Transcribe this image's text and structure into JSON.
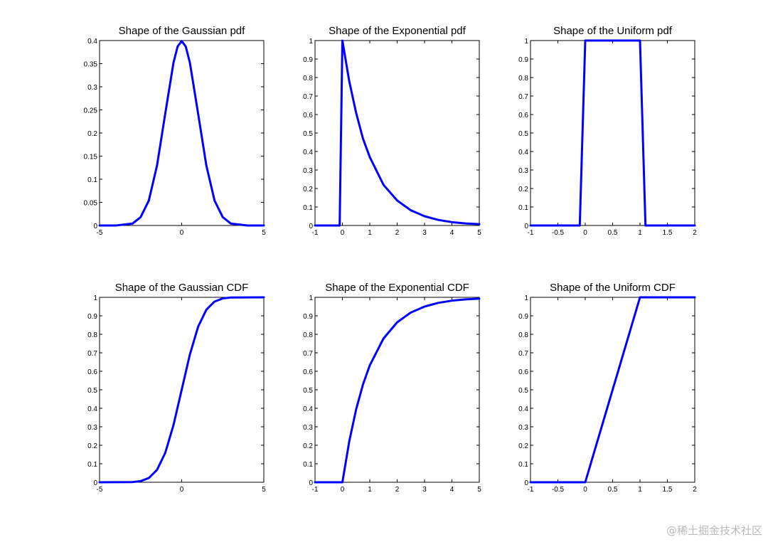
{
  "figure": {
    "line_color": "#0000ff",
    "axis_color": "#000000"
  },
  "watermark": "@稀土掘金技术社区",
  "chart_data": [
    {
      "type": "line",
      "title": "Shape of the Gaussian pdf",
      "xlim": [
        -5,
        5
      ],
      "ylim": [
        0,
        0.4
      ],
      "xticks": [
        -5,
        0,
        5
      ],
      "xtick_labels": [
        "-5",
        "0",
        "5"
      ],
      "yticks": [
        0,
        0.05,
        0.1,
        0.15,
        0.2,
        0.25,
        0.3,
        0.35,
        0.4
      ],
      "ytick_labels": [
        "0",
        "0.05",
        "0.1",
        "0.15",
        "0.2",
        "0.25",
        "0.3",
        "0.35",
        "0.4"
      ],
      "series": [
        {
          "name": "Gaussian pdf",
          "x": [
            -5,
            -4,
            -3,
            -2.5,
            -2,
            -1.5,
            -1,
            -0.5,
            -0.25,
            0,
            0.25,
            0.5,
            1,
            1.5,
            2,
            2.5,
            3,
            4,
            5
          ],
          "y": [
            0,
            0,
            0.004,
            0.018,
            0.054,
            0.13,
            0.242,
            0.352,
            0.387,
            0.399,
            0.387,
            0.352,
            0.242,
            0.13,
            0.054,
            0.018,
            0.004,
            0,
            0
          ]
        }
      ]
    },
    {
      "type": "line",
      "title": "Shape of the Exponential pdf",
      "xlim": [
        -1,
        5
      ],
      "ylim": [
        0,
        1
      ],
      "xticks": [
        -1,
        0,
        1,
        2,
        3,
        4,
        5
      ],
      "xtick_labels": [
        "-1",
        "0",
        "1",
        "2",
        "3",
        "4",
        "5"
      ],
      "yticks": [
        0,
        0.1,
        0.2,
        0.3,
        0.4,
        0.5,
        0.6,
        0.7,
        0.8,
        0.9,
        1
      ],
      "ytick_labels": [
        "0",
        "0.1",
        "0.2",
        "0.3",
        "0.4",
        "0.5",
        "0.6",
        "0.7",
        "0.8",
        "0.9",
        "1"
      ],
      "series": [
        {
          "name": "Exponential pdf",
          "x": [
            -1,
            -0.1,
            0,
            0.25,
            0.5,
            0.75,
            1,
            1.5,
            2,
            2.5,
            3,
            3.5,
            4,
            4.5,
            5
          ],
          "y": [
            0,
            0,
            1,
            0.78,
            0.61,
            0.47,
            0.37,
            0.22,
            0.135,
            0.082,
            0.05,
            0.03,
            0.018,
            0.011,
            0.007
          ]
        }
      ]
    },
    {
      "type": "line",
      "title": "Shape of the Uniform pdf",
      "xlim": [
        -1,
        2
      ],
      "ylim": [
        0,
        1
      ],
      "xticks": [
        -1,
        -0.5,
        0,
        0.5,
        1,
        1.5,
        2
      ],
      "xtick_labels": [
        "-1",
        "-0.5",
        "0",
        "0.5",
        "1",
        "1.5",
        "2"
      ],
      "yticks": [
        0,
        0.1,
        0.2,
        0.3,
        0.4,
        0.5,
        0.6,
        0.7,
        0.8,
        0.9,
        1
      ],
      "ytick_labels": [
        "0",
        "0.1",
        "0.2",
        "0.3",
        "0.4",
        "0.5",
        "0.6",
        "0.7",
        "0.8",
        "0.9",
        "1"
      ],
      "series": [
        {
          "name": "Uniform pdf",
          "x": [
            -1,
            -0.1,
            0,
            1,
            1.1,
            2
          ],
          "y": [
            0,
            0,
            1,
            1,
            0,
            0
          ]
        }
      ]
    },
    {
      "type": "line",
      "title": "Shape of the Gaussian CDF",
      "xlim": [
        -5,
        5
      ],
      "ylim": [
        0,
        1
      ],
      "xticks": [
        -5,
        0,
        5
      ],
      "xtick_labels": [
        "-5",
        "0",
        "5"
      ],
      "yticks": [
        0,
        0.1,
        0.2,
        0.3,
        0.4,
        0.5,
        0.6,
        0.7,
        0.8,
        0.9,
        1
      ],
      "ytick_labels": [
        "0",
        "0.1",
        "0.2",
        "0.3",
        "0.4",
        "0.5",
        "0.6",
        "0.7",
        "0.8",
        "0.9",
        "1"
      ],
      "series": [
        {
          "name": "Gaussian CDF",
          "x": [
            -5,
            -3,
            -2.5,
            -2,
            -1.5,
            -1,
            -0.5,
            0,
            0.5,
            1,
            1.5,
            2,
            2.5,
            3,
            5
          ],
          "y": [
            0,
            0.001,
            0.006,
            0.023,
            0.067,
            0.159,
            0.309,
            0.5,
            0.691,
            0.841,
            0.933,
            0.977,
            0.994,
            0.999,
            1
          ]
        }
      ]
    },
    {
      "type": "line",
      "title": "Shape of the Exponential CDF",
      "xlim": [
        -1,
        5
      ],
      "ylim": [
        0,
        1
      ],
      "xticks": [
        -1,
        0,
        1,
        2,
        3,
        4,
        5
      ],
      "xtick_labels": [
        "-1",
        "0",
        "1",
        "2",
        "3",
        "4",
        "5"
      ],
      "yticks": [
        0,
        0.1,
        0.2,
        0.3,
        0.4,
        0.5,
        0.6,
        0.7,
        0.8,
        0.9,
        1
      ],
      "ytick_labels": [
        "0",
        "0.1",
        "0.2",
        "0.3",
        "0.4",
        "0.5",
        "0.6",
        "0.7",
        "0.8",
        "0.9",
        "1"
      ],
      "series": [
        {
          "name": "Exponential CDF",
          "x": [
            -1,
            0,
            0.25,
            0.5,
            0.75,
            1,
            1.5,
            2,
            2.5,
            3,
            3.5,
            4,
            4.5,
            5
          ],
          "y": [
            0,
            0,
            0.221,
            0.393,
            0.528,
            0.632,
            0.777,
            0.865,
            0.918,
            0.95,
            0.97,
            0.982,
            0.989,
            0.993
          ]
        }
      ]
    },
    {
      "type": "line",
      "title": "Shape of the Uniform CDF",
      "xlim": [
        -1,
        2
      ],
      "ylim": [
        0,
        1
      ],
      "xticks": [
        -1,
        -0.5,
        0,
        0.5,
        1,
        1.5,
        2
      ],
      "xtick_labels": [
        "-1",
        "-0.5",
        "0",
        "0.5",
        "1",
        "1.5",
        "2"
      ],
      "yticks": [
        0,
        0.1,
        0.2,
        0.3,
        0.4,
        0.5,
        0.6,
        0.7,
        0.8,
        0.9,
        1
      ],
      "ytick_labels": [
        "0",
        "0.1",
        "0.2",
        "0.3",
        "0.4",
        "0.5",
        "0.6",
        "0.7",
        "0.8",
        "0.9",
        "1"
      ],
      "series": [
        {
          "name": "Uniform CDF",
          "x": [
            -1,
            0,
            1,
            2
          ],
          "y": [
            0,
            0,
            1,
            1
          ]
        }
      ]
    }
  ]
}
